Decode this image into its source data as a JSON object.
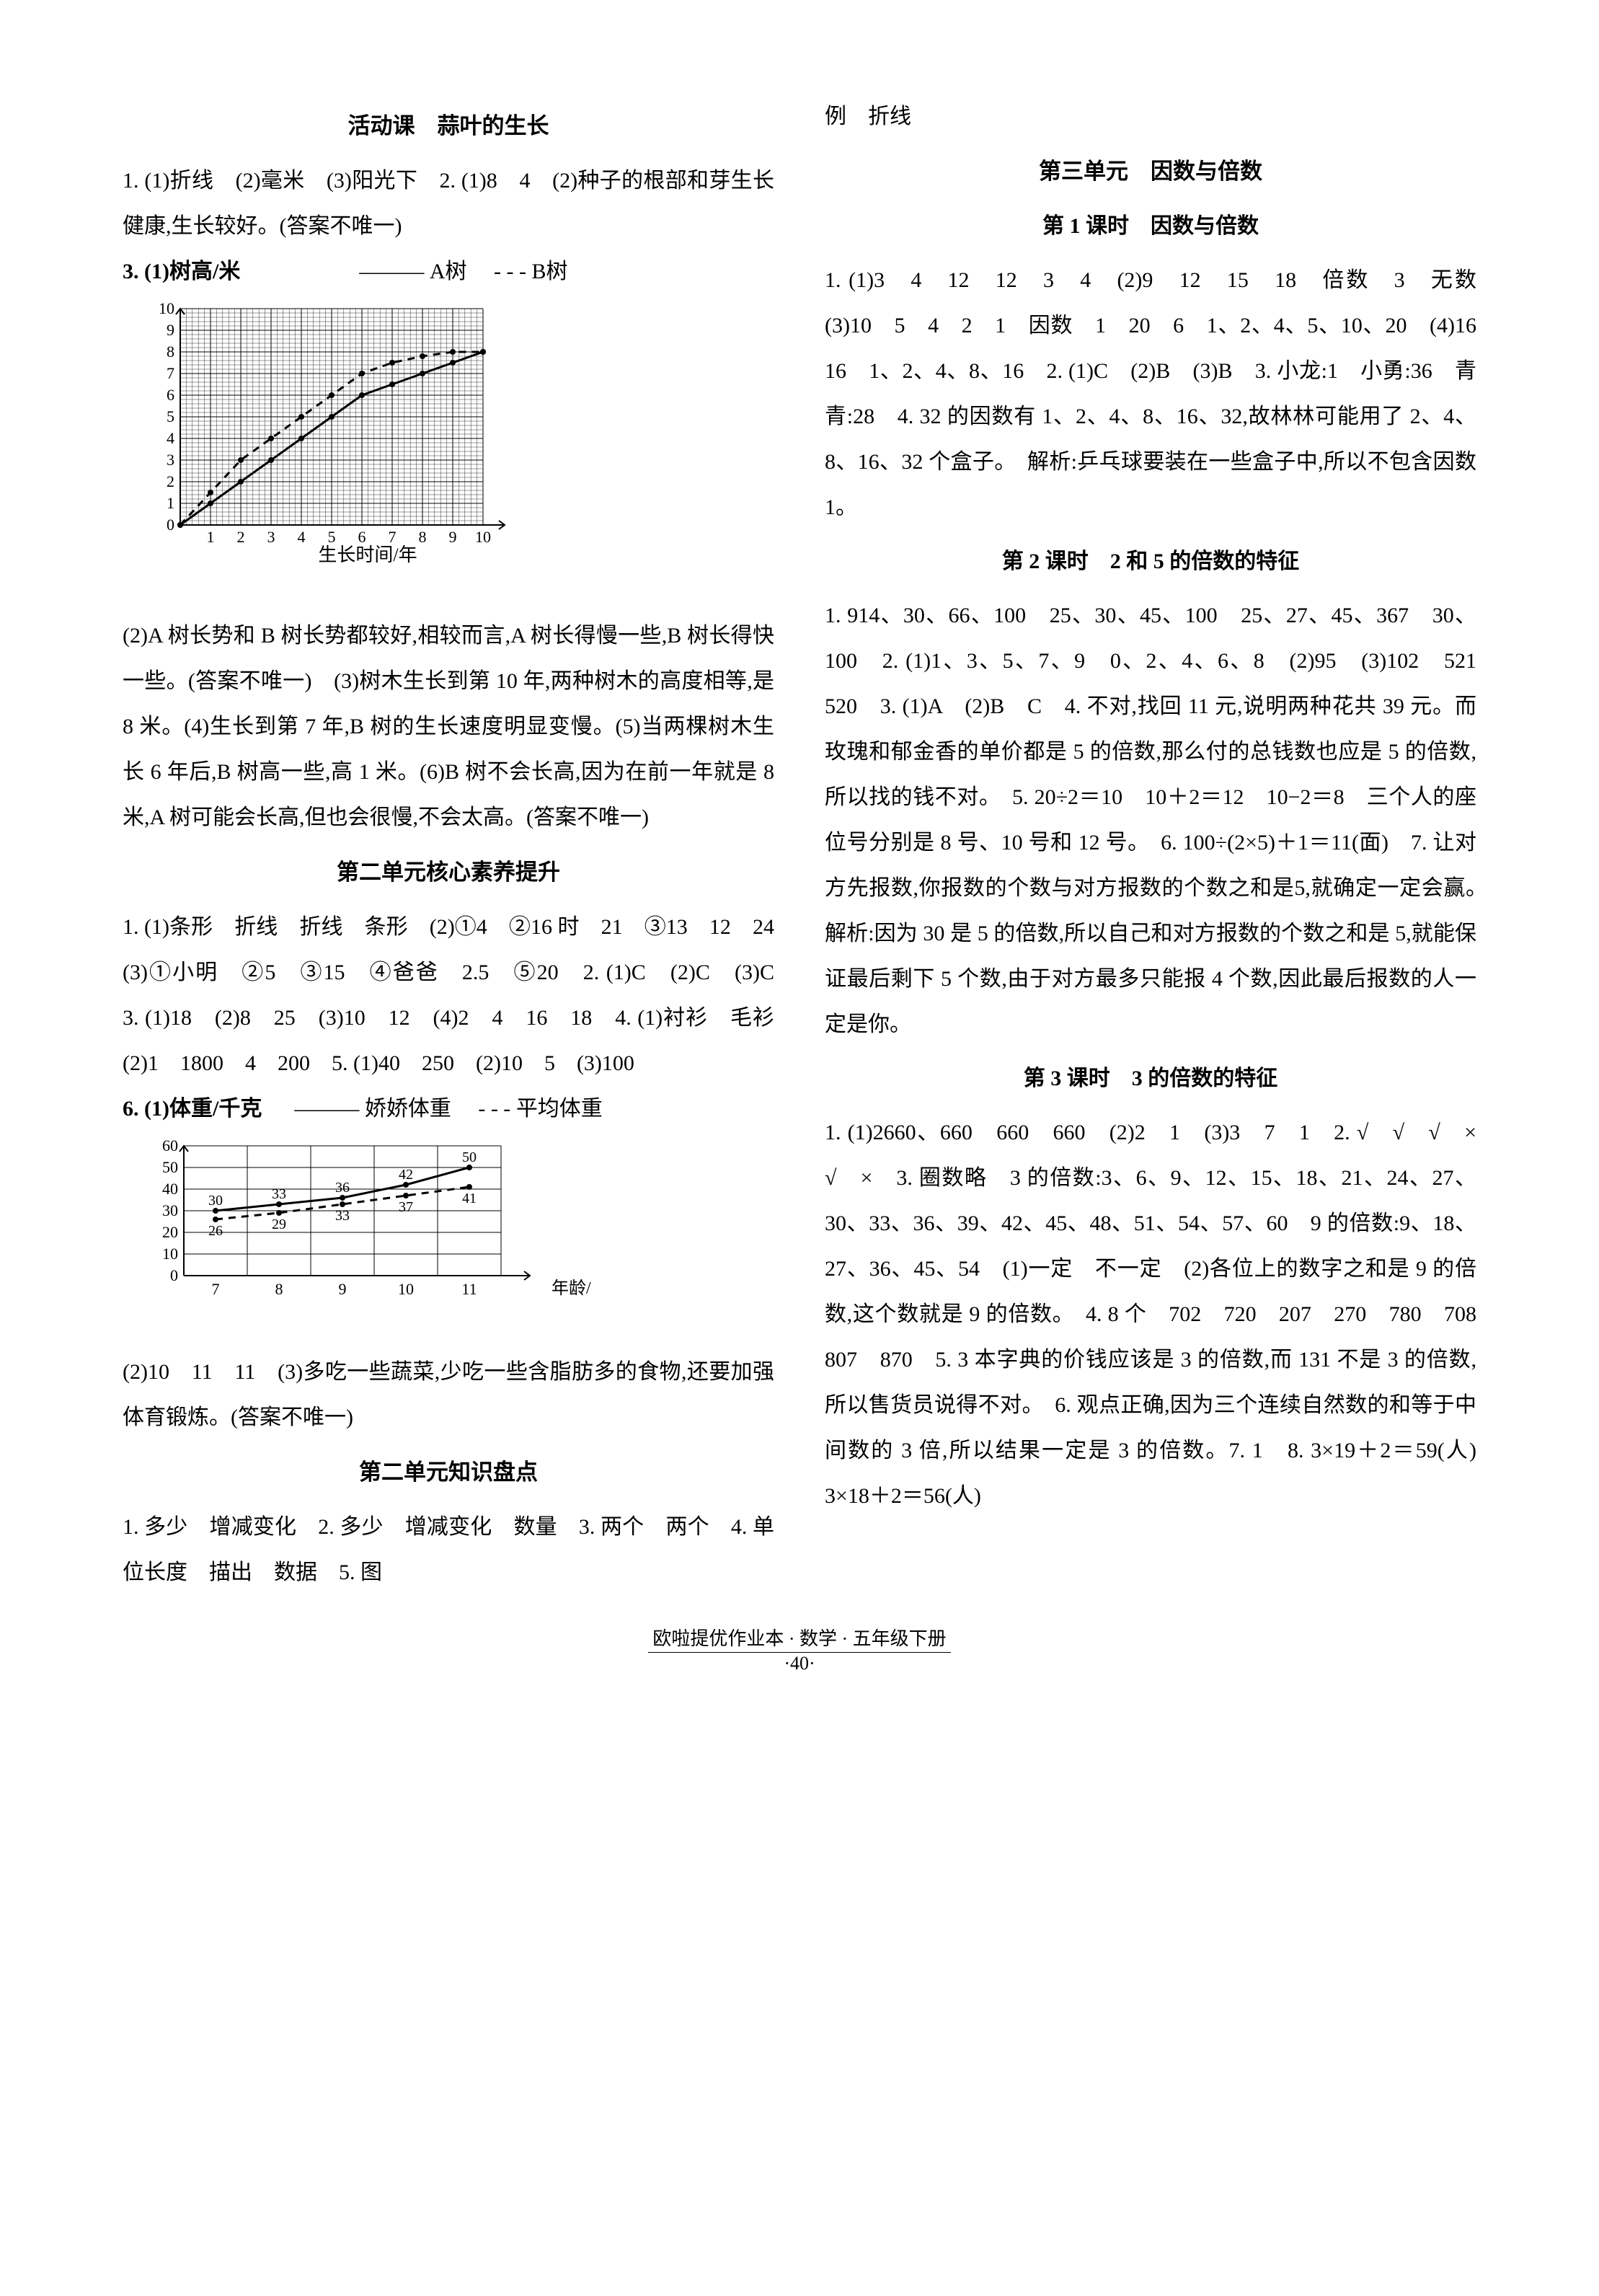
{
  "left": {
    "title_activity": "活动课　蒜叶的生长",
    "p1": "1. (1)折线　(2)毫米　(3)阳光下　2. (1)8　4　(2)种子的根部和芽生长健康,生长较好。(答案不唯一)",
    "chart1": {
      "ylabel_prefix": "3. (1)树高/米",
      "legend_a": "A树",
      "legend_b": "B树",
      "xlabel": "生长时间/年",
      "ylim": [
        0,
        10
      ],
      "ytick_step": 1,
      "xlim": [
        0,
        10
      ],
      "xtick_step": 1,
      "series_a": [
        0,
        1,
        2,
        3,
        4,
        5,
        6,
        6.5,
        7,
        7.5,
        8
      ],
      "series_b": [
        0,
        1.5,
        3,
        4,
        5,
        6,
        7,
        7.5,
        7.8,
        8,
        8
      ],
      "line_color": "#000000",
      "grid_color": "#000000",
      "background_color": "#ffffff"
    },
    "p2": "(2)A 树长势和 B 树长势都较好,相较而言,A 树长得慢一些,B 树长得快一些。(答案不唯一)　(3)树木生长到第 10 年,两种树木的高度相等,是 8 米。(4)生长到第 7 年,B 树的生长速度明显变慢。(5)当两棵树木生长 6 年后,B 树高一些,高 1 米。(6)B 树不会长高,因为在前一年就是 8 米,A 树可能会长高,但也会很慢,不会太高。(答案不唯一)",
    "title_unit2_core": "第二单元核心素养提升",
    "p3": "1. (1)条形　折线　折线　条形　(2)①4　②16 时　21　③13　12　24　(3)①小明　②5　③15　④爸爸　2.5　⑤20　2. (1)C　(2)C　(3)C　3. (1)18　(2)8　25　(3)10　12　(4)2　4　16　18　4. (1)衬衫　毛衫　(2)1　1800　4　200　5. (1)40　250　(2)10　5　(3)100",
    "chart2": {
      "header": "6. (1)体重/千克",
      "legend_jj": "娇娇体重",
      "legend_avg": "平均体重",
      "xlabel": "年龄/岁",
      "ylim": [
        0,
        60
      ],
      "ytick_step": 10,
      "xvals": [
        7,
        8,
        9,
        10,
        11
      ],
      "series_jj": [
        30,
        33,
        36,
        42,
        50
      ],
      "series_avg": [
        26,
        29,
        33,
        37,
        41
      ],
      "line_color": "#000000",
      "grid_color": "#000000",
      "background_color": "#ffffff"
    },
    "p4": "(2)10　11　11　(3)多吃一些蔬菜,少吃一些含脂肪多的食物,还要加强体育锻炼。(答案不唯一)",
    "title_unit2_review": "第二单元知识盘点",
    "p5": "1. 多少　增减变化　2. 多少　增减变化　数量　3. 两个　两个　4. 单位长度　描出　数据　5. 图"
  },
  "right": {
    "p_top": "例　折线",
    "title_unit3": "第三单元　因数与倍数",
    "title_lesson1": "第 1 课时　因数与倍数",
    "p1": "1. (1)3　4　12　12　3　4　(2)9　12　15　18　倍数　3　无数　(3)10　5　4　2　1　因数　1　20　6　1、2、4、5、10、20　(4)16　16　1、2、4、8、16　2. (1)C　(2)B　(3)B　3. 小龙:1　小勇:36　青青:28　4. 32 的因数有 1、2、4、8、16、32,故林林可能用了 2、4、8、16、32 个盒子。　解析:乒乓球要装在一些盒子中,所以不包含因数 1。",
    "title_lesson2": "第 2 课时　2 和 5 的倍数的特征",
    "p2": "1. 914、30、66、100　25、30、45、100　25、27、45、367　30、100　2. (1)1、3、5、7、9　0、2、4、6、8　(2)95　(3)102　521　520　3. (1)A　(2)B　C　4. 不对,找回 11 元,说明两种花共 39 元。而玫瑰和郁金香的单价都是 5 的倍数,那么付的总钱数也应是 5 的倍数,所以找的钱不对。　5. 20÷2＝10　10＋2＝12　10−2＝8　三个人的座位号分别是 8 号、10 号和 12 号。　6. 100÷(2×5)＋1＝11(面)　7. 让对方先报数,你报数的个数与对方报数的个数之和是5,就确定一定会赢。　解析:因为 30 是 5 的倍数,所以自己和对方报数的个数之和是 5,就能保证最后剩下 5 个数,由于对方最多只能报 4 个数,因此最后报数的人一定是你。",
    "title_lesson3": "第 3 课时　3 的倍数的特征",
    "p3": "1. (1)2660、660　660　660　(2)2　1　(3)3　7　1　2. √　√　√　×　√　×　3. 圈数略　3 的倍数:3、6、9、12、15、18、21、24、27、30、33、36、39、42、45、48、51、54、57、60　9 的倍数:9、18、27、36、45、54　(1)一定　不一定　(2)各位上的数字之和是 9 的倍数,这个数就是 9 的倍数。　4. 8 个　702　720　207　270　780　708　807　870　5. 3 本字典的价钱应该是 3 的倍数,而 131 不是 3 的倍数,所以售货员说得不对。　6. 观点正确,因为三个连续自然数的和等于中间数的 3 倍,所以结果一定是 3 的倍数。7. 1　8. 3×19＋2＝59(人)　3×18＋2＝56(人)"
  },
  "footer": {
    "book": "欧啦提优作业本 · 数学 · 五年级下册",
    "page": "·40·"
  }
}
